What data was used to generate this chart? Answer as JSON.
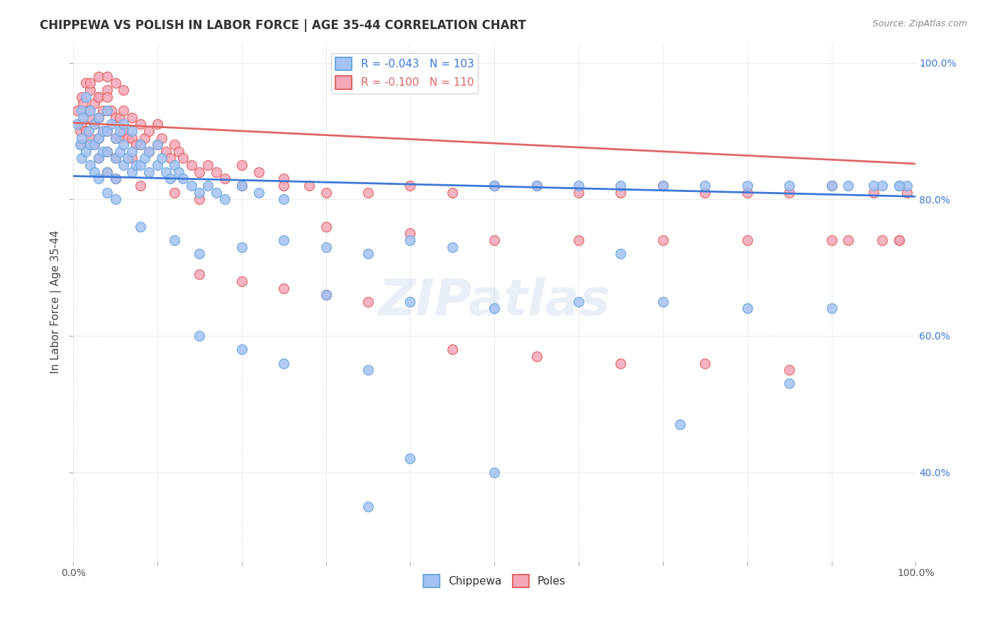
{
  "title": "CHIPPEWA VS POLISH IN LABOR FORCE | AGE 35-44 CORRELATION CHART",
  "source": "Source: ZipAtlas.com",
  "ylabel_label": "In Labor Force | Age 35-44",
  "x_min": 0.0,
  "x_max": 1.0,
  "y_min": 0.27,
  "y_max": 1.03,
  "chippewa_color": "#a4c2f4",
  "poles_color": "#f4a7b9",
  "chippewa_edge_color": "#6fa8dc",
  "poles_edge_color": "#e06666",
  "chippewa_line_color": "#3c78d8",
  "poles_line_color": "#e06666",
  "background_color": "#ffffff",
  "grid_color": "#cccccc",
  "R_chippewa": -0.043,
  "N_chippewa": 103,
  "R_poles": -0.1,
  "N_poles": 110,
  "chippewa_x": [
    0.005,
    0.008,
    0.01,
    0.01,
    0.01,
    0.012,
    0.015,
    0.015,
    0.018,
    0.02,
    0.02,
    0.02,
    0.025,
    0.025,
    0.025,
    0.03,
    0.03,
    0.03,
    0.03,
    0.035,
    0.035,
    0.04,
    0.04,
    0.04,
    0.04,
    0.04,
    0.045,
    0.05,
    0.05,
    0.05,
    0.05,
    0.055,
    0.055,
    0.06,
    0.06,
    0.06,
    0.065,
    0.07,
    0.07,
    0.07,
    0.075,
    0.08,
    0.08,
    0.085,
    0.09,
    0.09,
    0.1,
    0.1,
    0.105,
    0.11,
    0.115,
    0.12,
    0.125,
    0.13,
    0.14,
    0.15,
    0.16,
    0.17,
    0.18,
    0.2,
    0.22,
    0.25,
    0.08,
    0.12,
    0.15,
    0.2,
    0.25,
    0.3,
    0.35,
    0.4,
    0.45,
    0.5,
    0.55,
    0.6,
    0.65,
    0.7,
    0.75,
    0.8,
    0.85,
    0.9,
    0.95,
    0.99,
    0.3,
    0.4,
    0.5,
    0.6,
    0.7,
    0.8,
    0.9,
    0.98,
    0.15,
    0.2,
    0.25,
    0.35,
    0.4,
    0.5,
    0.35,
    0.65,
    0.72,
    0.85,
    0.92,
    0.96,
    0.98
  ],
  "chippewa_y": [
    0.91,
    0.88,
    0.93,
    0.89,
    0.86,
    0.92,
    0.95,
    0.87,
    0.9,
    0.93,
    0.88,
    0.85,
    0.91,
    0.88,
    0.84,
    0.92,
    0.89,
    0.86,
    0.83,
    0.9,
    0.87,
    0.93,
    0.9,
    0.87,
    0.84,
    0.81,
    0.91,
    0.89,
    0.86,
    0.83,
    0.8,
    0.9,
    0.87,
    0.91,
    0.88,
    0.85,
    0.86,
    0.9,
    0.87,
    0.84,
    0.85,
    0.88,
    0.85,
    0.86,
    0.87,
    0.84,
    0.88,
    0.85,
    0.86,
    0.84,
    0.83,
    0.85,
    0.84,
    0.83,
    0.82,
    0.81,
    0.82,
    0.81,
    0.8,
    0.82,
    0.81,
    0.8,
    0.76,
    0.74,
    0.72,
    0.73,
    0.74,
    0.73,
    0.72,
    0.74,
    0.73,
    0.82,
    0.82,
    0.82,
    0.82,
    0.82,
    0.82,
    0.82,
    0.82,
    0.82,
    0.82,
    0.82,
    0.66,
    0.65,
    0.64,
    0.65,
    0.65,
    0.64,
    0.64,
    0.82,
    0.6,
    0.58,
    0.56,
    0.55,
    0.42,
    0.4,
    0.35,
    0.72,
    0.47,
    0.53,
    0.82,
    0.82,
    0.82
  ],
  "poles_x": [
    0.005,
    0.008,
    0.01,
    0.01,
    0.01,
    0.012,
    0.015,
    0.015,
    0.018,
    0.02,
    0.02,
    0.02,
    0.025,
    0.025,
    0.025,
    0.03,
    0.03,
    0.03,
    0.03,
    0.035,
    0.035,
    0.04,
    0.04,
    0.04,
    0.04,
    0.04,
    0.045,
    0.05,
    0.05,
    0.05,
    0.05,
    0.055,
    0.055,
    0.06,
    0.06,
    0.065,
    0.07,
    0.07,
    0.07,
    0.075,
    0.08,
    0.08,
    0.085,
    0.09,
    0.09,
    0.1,
    0.1,
    0.105,
    0.11,
    0.115,
    0.12,
    0.125,
    0.13,
    0.14,
    0.15,
    0.16,
    0.17,
    0.18,
    0.2,
    0.22,
    0.25,
    0.28,
    0.08,
    0.12,
    0.15,
    0.2,
    0.25,
    0.3,
    0.35,
    0.4,
    0.45,
    0.5,
    0.55,
    0.6,
    0.65,
    0.7,
    0.75,
    0.8,
    0.85,
    0.9,
    0.95,
    0.99,
    0.3,
    0.4,
    0.5,
    0.6,
    0.7,
    0.8,
    0.9,
    0.98,
    0.15,
    0.2,
    0.25,
    0.3,
    0.35,
    0.45,
    0.55,
    0.65,
    0.75,
    0.85,
    0.92,
    0.96,
    0.98,
    0.02,
    0.03,
    0.03,
    0.04,
    0.04,
    0.05,
    0.06
  ],
  "poles_y": [
    0.93,
    0.9,
    0.95,
    0.91,
    0.88,
    0.94,
    0.97,
    0.9,
    0.93,
    0.96,
    0.92,
    0.89,
    0.94,
    0.91,
    0.88,
    0.95,
    0.92,
    0.89,
    0.86,
    0.93,
    0.9,
    0.96,
    0.93,
    0.9,
    0.87,
    0.84,
    0.93,
    0.92,
    0.89,
    0.86,
    0.83,
    0.92,
    0.89,
    0.93,
    0.9,
    0.89,
    0.92,
    0.89,
    0.86,
    0.88,
    0.91,
    0.88,
    0.89,
    0.9,
    0.87,
    0.91,
    0.88,
    0.89,
    0.87,
    0.86,
    0.88,
    0.87,
    0.86,
    0.85,
    0.84,
    0.85,
    0.84,
    0.83,
    0.85,
    0.84,
    0.83,
    0.82,
    0.82,
    0.81,
    0.8,
    0.82,
    0.82,
    0.81,
    0.81,
    0.82,
    0.81,
    0.82,
    0.82,
    0.81,
    0.81,
    0.82,
    0.81,
    0.81,
    0.81,
    0.82,
    0.81,
    0.81,
    0.76,
    0.75,
    0.74,
    0.74,
    0.74,
    0.74,
    0.74,
    0.74,
    0.69,
    0.68,
    0.67,
    0.66,
    0.65,
    0.58,
    0.57,
    0.56,
    0.56,
    0.55,
    0.74,
    0.74,
    0.74,
    0.97,
    0.98,
    0.95,
    0.98,
    0.95,
    0.97,
    0.96
  ],
  "chippewa_line_start_y": 0.834,
  "chippewa_line_end_y": 0.804,
  "poles_line_start_y": 0.912,
  "poles_line_end_y": 0.852
}
